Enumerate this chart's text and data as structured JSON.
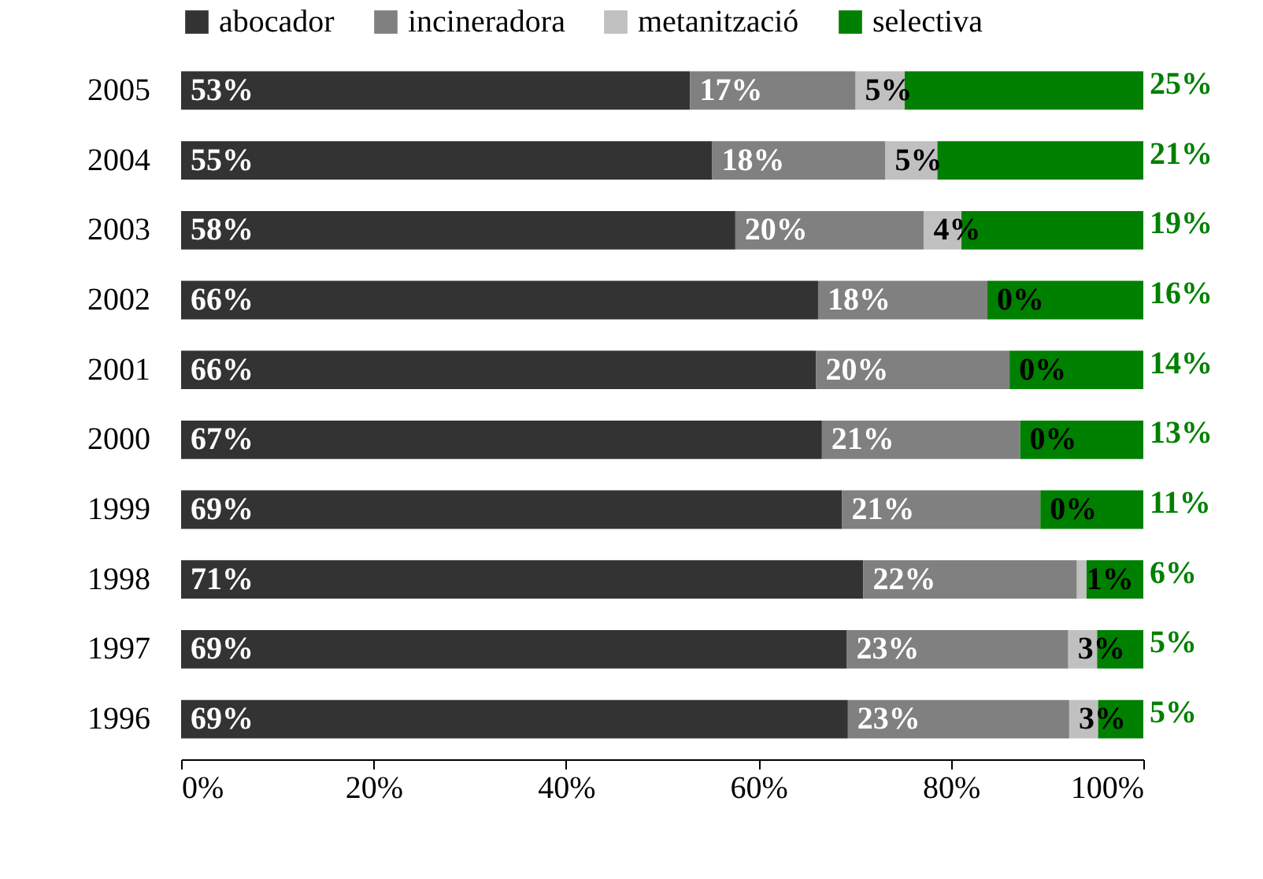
{
  "chart_data": {
    "type": "bar",
    "orientation": "horizontal",
    "stacked": true,
    "legend": "top",
    "grid": false,
    "categories": [
      "2005",
      "2004",
      "2003",
      "2002",
      "2001",
      "2000",
      "1999",
      "1998",
      "1997",
      "1996"
    ],
    "xlim": [
      0,
      100
    ],
    "xticks": [
      {
        "value": 0,
        "label": "0%"
      },
      {
        "value": 20,
        "label": "20%"
      },
      {
        "value": 40,
        "label": "40%"
      },
      {
        "value": 60,
        "label": "60%"
      },
      {
        "value": 80,
        "label": "80%"
      },
      {
        "value": 100,
        "label": "100%"
      }
    ],
    "series": [
      {
        "name": "abocador",
        "color": "#333333",
        "values": [
          52.9,
          55.2,
          57.6,
          66.2,
          66.0,
          66.6,
          68.7,
          70.9,
          69.2,
          69.3
        ],
        "value_labels": [
          "53%",
          "55%",
          "58%",
          "66%",
          "66%",
          "67%",
          "69%",
          "71%",
          "69%",
          "69%"
        ]
      },
      {
        "name": "incineradora",
        "color": "#808080",
        "values": [
          17.2,
          18.0,
          19.6,
          17.6,
          20.1,
          20.6,
          20.6,
          22.2,
          23.0,
          23.0
        ],
        "value_labels": [
          "17%",
          "18%",
          "20%",
          "18%",
          "20%",
          "21%",
          "21%",
          "22%",
          "23%",
          "23%"
        ]
      },
      {
        "name": "metanització",
        "color": "#c0c0c0",
        "values": [
          5.1,
          5.4,
          3.9,
          0,
          0,
          0,
          0,
          1.0,
          3.0,
          3.0
        ],
        "value_labels": [
          "5%",
          "5%",
          "4%",
          "0%",
          "0%",
          "0%",
          "0%",
          "1%",
          "3%",
          "3%"
        ]
      },
      {
        "name": "selectiva",
        "color": "#008000",
        "values": [
          24.8,
          21.4,
          18.9,
          16.2,
          13.9,
          12.8,
          10.7,
          5.9,
          4.8,
          4.7
        ],
        "value_labels": [
          "25%",
          "21%",
          "19%",
          "16%",
          "14%",
          "13%",
          "11%",
          "6%",
          "5%",
          "5%"
        ]
      }
    ]
  }
}
